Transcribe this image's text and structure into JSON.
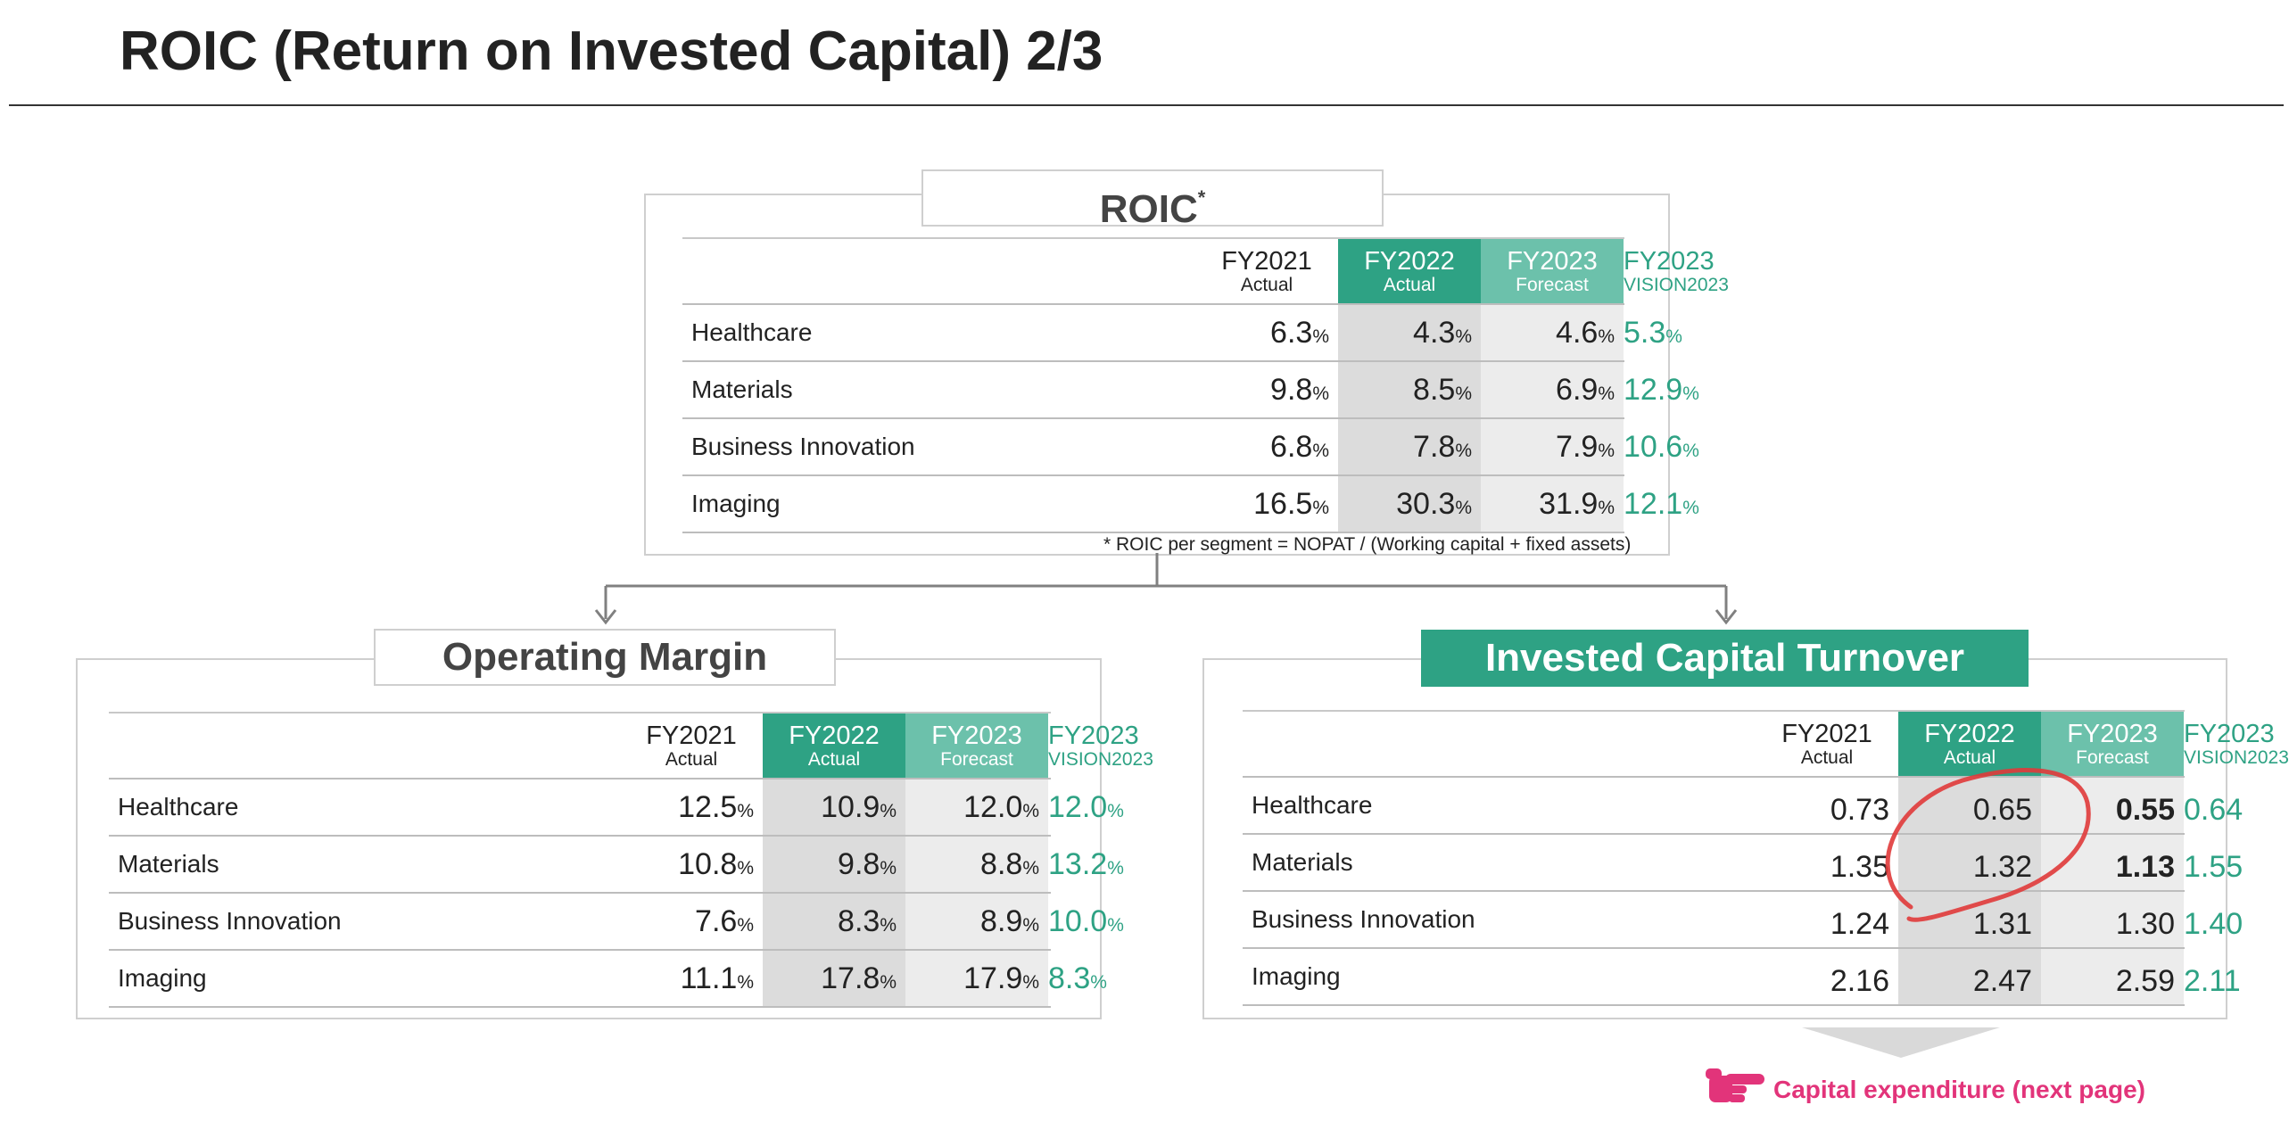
{
  "page": {
    "title": "ROIC (Return on Invested Capital) 2/3"
  },
  "roic": {
    "caption": "ROIC",
    "caption_mark": "*",
    "footnote": "* ROIC per segment = NOPAT / (Working capital + fixed assets)",
    "columns": [
      {
        "year": "FY2021",
        "sub": "Actual"
      },
      {
        "year": "FY2022",
        "sub": "Actual"
      },
      {
        "year": "FY2023",
        "sub": "Forecast"
      },
      {
        "year": "FY2023",
        "sub": "VISION2023"
      }
    ],
    "unit": "%",
    "rows": [
      {
        "label": "Healthcare",
        "values": [
          "6.3",
          "4.3",
          "4.6",
          "5.3"
        ]
      },
      {
        "label": "Materials",
        "values": [
          "9.8",
          "8.5",
          "6.9",
          "12.9"
        ]
      },
      {
        "label": "Business Innovation",
        "values": [
          "6.8",
          "7.8",
          "7.9",
          "10.6"
        ]
      },
      {
        "label": "Imaging",
        "values": [
          "16.5",
          "30.3",
          "31.9",
          "12.1"
        ]
      }
    ]
  },
  "operating_margin": {
    "caption": "Operating Margin",
    "columns": [
      {
        "year": "FY2021",
        "sub": "Actual"
      },
      {
        "year": "FY2022",
        "sub": "Actual"
      },
      {
        "year": "FY2023",
        "sub": "Forecast"
      },
      {
        "year": "FY2023",
        "sub": "VISION2023"
      }
    ],
    "unit": "%",
    "rows": [
      {
        "label": "Healthcare",
        "values": [
          "12.5",
          "10.9",
          "12.0",
          "12.0"
        ]
      },
      {
        "label": "Materials",
        "values": [
          "10.8",
          "9.8",
          "8.8",
          "13.2"
        ]
      },
      {
        "label": "Business Innovation",
        "values": [
          "7.6",
          "8.3",
          "8.9",
          "10.0"
        ]
      },
      {
        "label": "Imaging",
        "values": [
          "11.1",
          "17.8",
          "17.9",
          "8.3"
        ]
      }
    ]
  },
  "invested_capital_turnover": {
    "caption": "Invested Capital Turnover",
    "columns": [
      {
        "year": "FY2021",
        "sub": "Actual"
      },
      {
        "year": "FY2022",
        "sub": "Actual"
      },
      {
        "year": "FY2023",
        "sub": "Forecast"
      },
      {
        "year": "FY2023",
        "sub": "VISION2023"
      }
    ],
    "unit": "",
    "highlighted": [
      "0.55",
      "1.13"
    ],
    "rows": [
      {
        "label": "Healthcare",
        "values": [
          "0.73",
          "0.65",
          "0.55",
          "0.64"
        ]
      },
      {
        "label": "Materials",
        "values": [
          "1.35",
          "1.32",
          "1.13",
          "1.55"
        ]
      },
      {
        "label": "Business Innovation",
        "values": [
          "1.24",
          "1.31",
          "1.30",
          "1.40"
        ]
      },
      {
        "label": "Imaging",
        "values": [
          "2.16",
          "2.47",
          "2.59",
          "2.11"
        ]
      }
    ]
  },
  "next_page": {
    "label": "Capital expenditure (next page)",
    "icon": "pointing-hand-icon"
  },
  "colors": {
    "accent_green": "#2ea284",
    "light_green": "#6cc1ab",
    "link_pink": "#e2347a",
    "highlight_circle": "#e03a3a"
  }
}
